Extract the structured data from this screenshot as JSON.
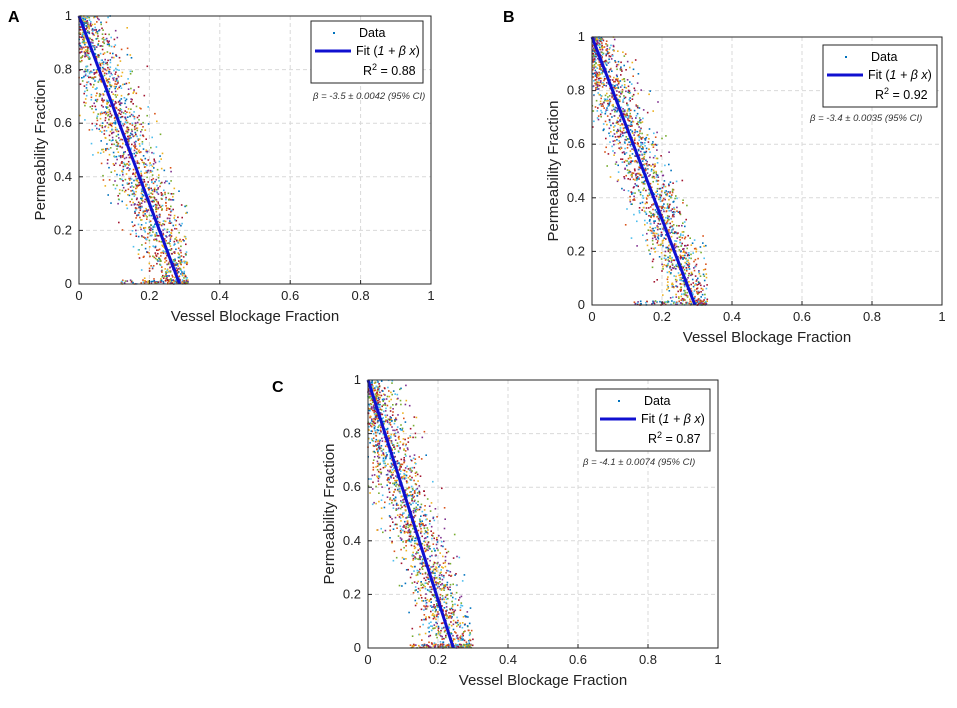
{
  "figure": {
    "colors": {
      "fit_line": "#1010d0",
      "grid": "#d9d9d9",
      "axes": "#262626",
      "scatter_palette": [
        "#0072bd",
        "#d95319",
        "#edb120",
        "#7e2f8e",
        "#77ac30",
        "#4dbeee",
        "#a2142f"
      ]
    }
  },
  "chart_data": [
    {
      "panel": "A",
      "type": "scatter",
      "title": "",
      "xlabel": "Vessel Blockage Fraction",
      "ylabel": "Permeability Fraction",
      "xlim": [
        0,
        1
      ],
      "ylim": [
        0,
        1
      ],
      "xticks": [
        "0",
        "0.2",
        "0.4",
        "0.6",
        "0.8",
        "1"
      ],
      "yticks": [
        "0",
        "0.2",
        "0.4",
        "0.6",
        "0.8",
        "1"
      ],
      "grid": true,
      "legend_position": "top-right",
      "legend": {
        "data": "Data",
        "fit_prefix": "Fit (",
        "fit_formula": "1 + β x",
        "fit_suffix": ")",
        "r2_prefix": "R",
        "r2_exp": "2",
        "r2_value": " = 0.88"
      },
      "annotation": "β = -3.5 ± 0.0042 (95% CI)",
      "beta": -3.5,
      "ci": 0.0042,
      "r2": 0.88,
      "fit_line": {
        "x": [
          0,
          0.2857
        ],
        "y": [
          1,
          0
        ]
      },
      "scatter_summary": {
        "band_half_width": 0.04,
        "x_max": 0.31,
        "n_points_sampled": 1800
      }
    },
    {
      "panel": "B",
      "type": "scatter",
      "title": "",
      "xlabel": "Vessel Blockage Fraction",
      "ylabel": "Permeability Fraction",
      "xlim": [
        0,
        1
      ],
      "ylim": [
        0,
        1
      ],
      "xticks": [
        "0",
        "0.2",
        "0.4",
        "0.6",
        "0.8",
        "1"
      ],
      "yticks": [
        "0",
        "0.2",
        "0.4",
        "0.6",
        "0.8",
        "1"
      ],
      "grid": true,
      "legend_position": "top-right",
      "legend": {
        "data": "Data",
        "fit_prefix": "Fit (",
        "fit_formula": "1 + β x",
        "fit_suffix": ")",
        "r2_prefix": "R",
        "r2_exp": "2",
        "r2_value": " = 0.92"
      },
      "annotation": "β = -3.4 ± 0.0035 (95% CI)",
      "beta": -3.4,
      "ci": 0.0035,
      "r2": 0.92,
      "fit_line": {
        "x": [
          0,
          0.2941
        ],
        "y": [
          1,
          0
        ]
      },
      "scatter_summary": {
        "band_half_width": 0.035,
        "x_max": 0.33,
        "n_points_sampled": 1800
      }
    },
    {
      "panel": "C",
      "type": "scatter",
      "title": "",
      "xlabel": "Vessel Blockage Fraction",
      "ylabel": "Permeability Fraction",
      "xlim": [
        0,
        1
      ],
      "ylim": [
        0,
        1
      ],
      "xticks": [
        "0",
        "0.2",
        "0.4",
        "0.6",
        "0.8",
        "1"
      ],
      "yticks": [
        "0",
        "0.2",
        "0.4",
        "0.6",
        "0.8",
        "1"
      ],
      "grid": true,
      "legend_position": "top-right",
      "legend": {
        "data": "Data",
        "fit_prefix": "Fit (",
        "fit_formula": "1 + β x",
        "fit_suffix": ")",
        "r2_prefix": "R",
        "r2_exp": "2",
        "r2_value": " = 0.87"
      },
      "annotation": "β = -4.1 ± 0.0074 (95% CI)",
      "beta": -4.1,
      "ci": 0.0074,
      "r2": 0.87,
      "fit_line": {
        "x": [
          0,
          0.2439
        ],
        "y": [
          1,
          0
        ]
      },
      "scatter_summary": {
        "band_half_width": 0.035,
        "x_max": 0.3,
        "n_points_sampled": 1800
      }
    }
  ]
}
